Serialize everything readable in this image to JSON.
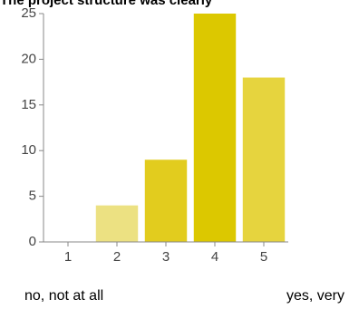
{
  "chart_data": {
    "type": "bar",
    "title": "The project structure was clearly",
    "categories": [
      "1",
      "2",
      "3",
      "4",
      "5"
    ],
    "values": [
      0,
      4,
      9,
      25,
      18
    ],
    "colors": [
      "#e8dc70",
      "#ece182",
      "#e2cc1e",
      "#dcc800",
      "#e6d43e"
    ],
    "ylim": [
      0,
      25
    ],
    "yticks": [
      0,
      5,
      10,
      15,
      20,
      25
    ],
    "annotations": [
      "no, not at all",
      "yes, very"
    ]
  }
}
